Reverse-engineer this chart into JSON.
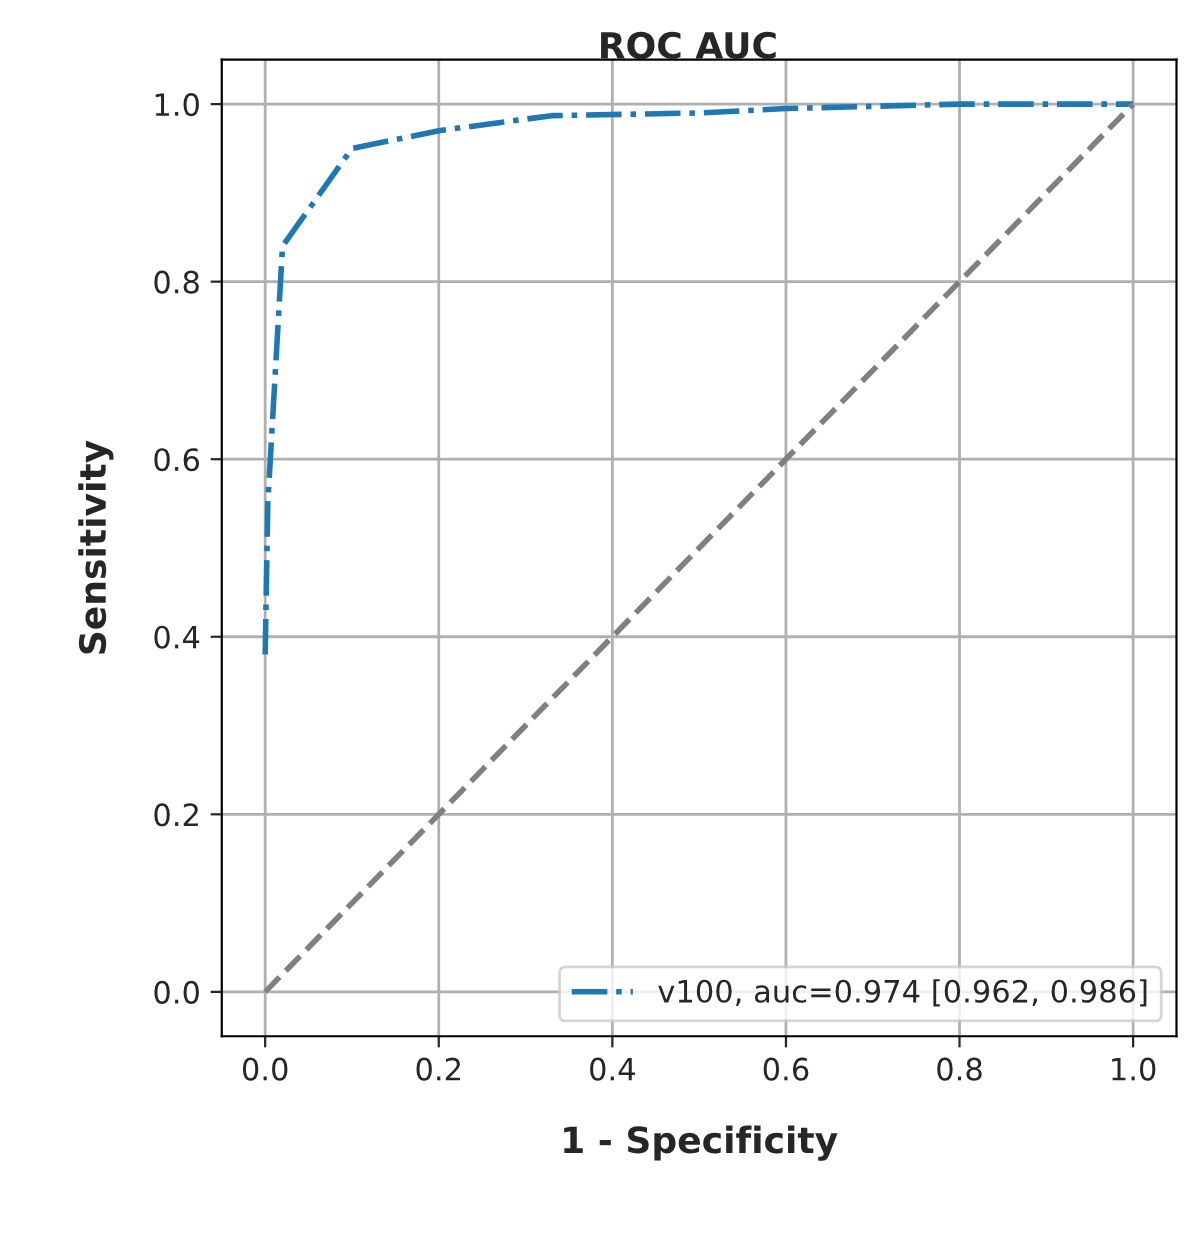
{
  "chart_data": {
    "type": "line",
    "title": "ROC AUC",
    "xlabel": "1 - Specificity",
    "ylabel": "Sensitivity",
    "xlim": [
      -0.05,
      1.05
    ],
    "ylim": [
      -0.05,
      1.05
    ],
    "xticks": [
      {
        "value": 0,
        "label": "0.0"
      },
      {
        "value": 0.2,
        "label": "0.2"
      },
      {
        "value": 0.4,
        "label": "0.4"
      },
      {
        "value": 0.6,
        "label": "0.6"
      },
      {
        "value": 0.8,
        "label": "0.8"
      },
      {
        "value": 1,
        "label": "1.0"
      }
    ],
    "yticks": [
      {
        "value": 0,
        "label": "0.0"
      },
      {
        "value": 0.2,
        "label": "0.2"
      },
      {
        "value": 0.4,
        "label": "0.4"
      },
      {
        "value": 0.6,
        "label": "0.6"
      },
      {
        "value": 0.8,
        "label": "0.8"
      },
      {
        "value": 1,
        "label": "1.0"
      }
    ],
    "grid": true,
    "legend": "bottom right",
    "series": [
      {
        "name": "v100, auc=0.974 [0.962, 0.986]",
        "color": "#1f77b4",
        "line_style": "dashdot",
        "x": [
          0,
          0.003,
          0.02,
          0.1,
          0.2,
          0.33,
          0.5,
          0.6,
          0.8,
          1.0
        ],
        "values": [
          0.38,
          0.55,
          0.84,
          0.95,
          0.97,
          0.987,
          0.99,
          0.995,
          1.0,
          1.0
        ]
      },
      {
        "color": "#808080",
        "line_style": "dashed",
        "x": [
          0,
          1
        ],
        "values": [
          0,
          1
        ]
      }
    ]
  }
}
